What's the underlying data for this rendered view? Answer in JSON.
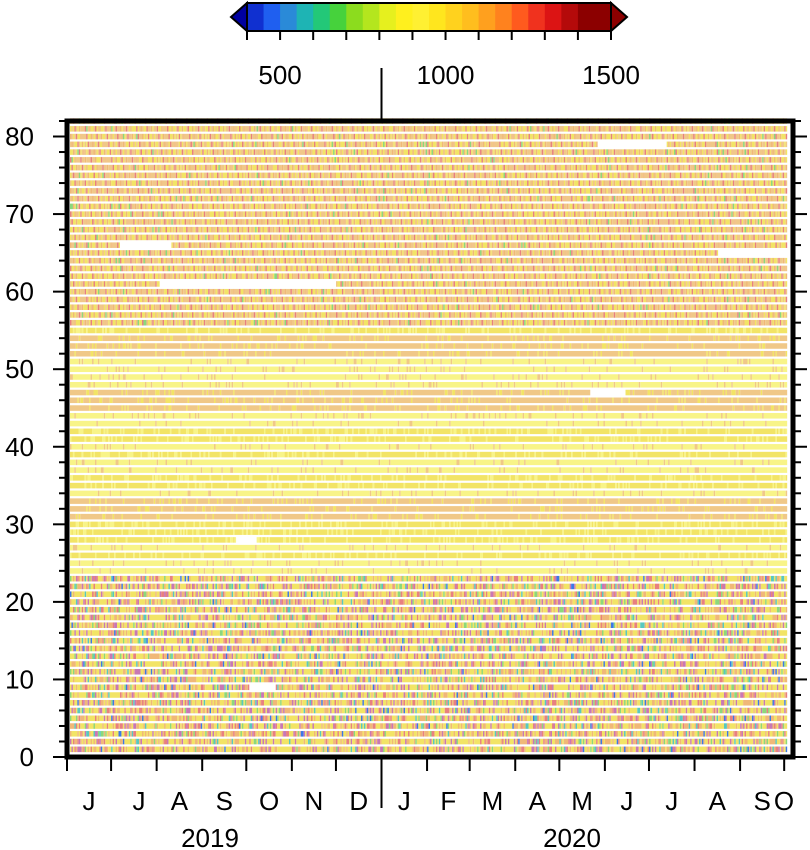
{
  "chart_data": {
    "type": "heatmap",
    "title": "",
    "xlabel": "",
    "ylabel": "",
    "ylim": [
      0,
      82
    ],
    "y_ticks": [
      "0",
      "10",
      "20",
      "30",
      "40",
      "50",
      "60",
      "70",
      "80"
    ],
    "x_start": "2019-06-01",
    "x_end": "2020-10-07",
    "months": [
      {
        "label": "J",
        "date": "2019-06-15"
      },
      {
        "label": "J",
        "date": "2019-07-01"
      },
      {
        "label": "A",
        "date": "2019-08-01"
      },
      {
        "label": "S",
        "date": "2019-09-01"
      },
      {
        "label": "O",
        "date": "2019-10-01"
      },
      {
        "label": "N",
        "date": "2019-11-01"
      },
      {
        "label": "D",
        "date": "2019-12-01"
      },
      {
        "label": "J",
        "date": "2020-01-01"
      },
      {
        "label": "F",
        "date": "2020-02-01"
      },
      {
        "label": "M",
        "date": "2020-03-01"
      },
      {
        "label": "A",
        "date": "2020-04-01"
      },
      {
        "label": "M",
        "date": "2020-05-01"
      },
      {
        "label": "J",
        "date": "2020-06-01"
      },
      {
        "label": "J",
        "date": "2020-07-01"
      },
      {
        "label": "A",
        "date": "2020-08-01"
      },
      {
        "label": "S",
        "date": "2020-09-01"
      },
      {
        "label": "O",
        "date": "2020-10-01"
      }
    ],
    "years": [
      {
        "label": "2019",
        "date": "2019-09-15"
      },
      {
        "label": "2020",
        "date": "2020-05-15"
      }
    ],
    "colorbar": {
      "min": 400,
      "max": 1500,
      "step": 50,
      "tick_labels": [
        {
          "label": "500",
          "value": 500
        },
        {
          "label": "1000",
          "value": 1000
        },
        {
          "label": "1500",
          "value": 1500
        }
      ],
      "colors": [
        "#0000a0",
        "#1030d0",
        "#1f5ff0",
        "#2a8ad8",
        "#1eb4b4",
        "#23c878",
        "#46d23c",
        "#8cdc1e",
        "#b4e61e",
        "#e6f01e",
        "#fff01e",
        "#fff032",
        "#ffe61e",
        "#ffd21e",
        "#ffbe1e",
        "#ffa01e",
        "#ff821e",
        "#ff5a1e",
        "#f0321e",
        "#dc1414",
        "#b40a0a",
        "#8c0000"
      ]
    },
    "colors": {
      "yellow_light": "#f8f488",
      "yellow": "#f2e466",
      "orange_light": "#f0c888",
      "orange": "#f0b878",
      "red": "#e88080",
      "magenta": "#c878b4",
      "green": "#8cd87c",
      "teal": "#58c8c0",
      "blue": "#3c78e6",
      "gap": "#ffffff"
    },
    "row_bands": [
      {
        "from": 0,
        "to": 24,
        "pattern": "mixed_dense",
        "description_colors": [
          "yellow",
          "orange",
          "magenta",
          "green",
          "teal",
          "blue"
        ]
      },
      {
        "from": 24,
        "to": 56,
        "pattern": "smooth",
        "description_colors": [
          "yellow_light",
          "yellow",
          "orange_light"
        ]
      },
      {
        "from": 56,
        "to": 82,
        "pattern": "alternating_weekly",
        "description_colors": [
          "yellow",
          "orange",
          "red",
          "green"
        ]
      }
    ],
    "gaps": [
      {
        "row": 66,
        "start": "2019-07-05",
        "end": "2019-08-08"
      },
      {
        "row": 61,
        "start": "2019-08-01",
        "end": "2019-11-28"
      },
      {
        "row": 28,
        "start": "2019-09-22",
        "end": "2019-10-05"
      },
      {
        "row": 47,
        "start": "2020-05-20",
        "end": "2020-06-12"
      },
      {
        "row": 79,
        "start": "2020-05-25",
        "end": "2020-07-10"
      },
      {
        "row": 65,
        "start": "2020-08-15",
        "end": "2020-09-30"
      },
      {
        "row": 9,
        "start": "2019-10-01",
        "end": "2019-10-18"
      }
    ]
  }
}
